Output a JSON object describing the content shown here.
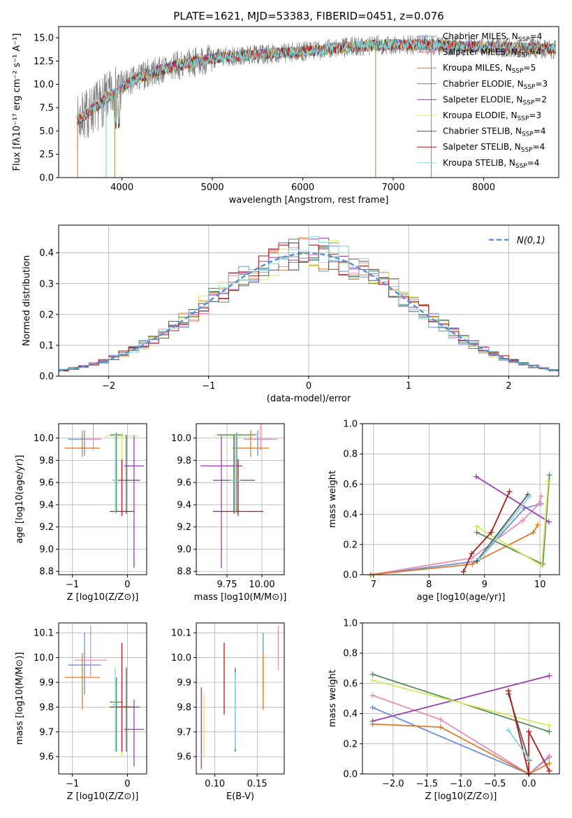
{
  "chart_data": [
    {
      "id": "spectrum",
      "type": "line",
      "title": "PLATE=1621, MJD=53383, FIBERID=0451, z=0.076",
      "xlabel": "wavelength [Angstrom, rest frame]",
      "ylabel": "Flux [fλ10⁻¹⁷ erg cm⁻² s⁻¹ A⁻¹]",
      "xlim": [
        3300,
        8830
      ],
      "ylim": [
        0,
        16.2
      ],
      "xticks": [
        4000,
        5000,
        6000,
        7000,
        8000
      ],
      "yticks": [
        0,
        2.5,
        5.0,
        7.5,
        10.0,
        12.5,
        15.0
      ],
      "grid": false,
      "legend_position": "right",
      "continuum": {
        "x": [
          3500,
          3700,
          3900,
          4100,
          4300,
          4600,
          5000,
          5500,
          6000,
          6500,
          6800,
          7100,
          7500,
          8000,
          8500,
          8800
        ],
        "y": [
          6.0,
          7.5,
          9.0,
          10.3,
          11.2,
          12.0,
          12.8,
          13.2,
          13.5,
          14.0,
          14.2,
          14.3,
          14.2,
          14.0,
          13.9,
          13.8
        ]
      },
      "series": [
        {
          "name": "Chabrier MILES, N_SSP=4",
          "color": "#6a8fd8"
        },
        {
          "name": "Salpeter MILES, N_SSP=4",
          "color": "#e58fb7"
        },
        {
          "name": "Kroupa MILES, N_SSP=5",
          "color": "#e07b27"
        },
        {
          "name": "Chabrier ELODIE, N_SSP=3",
          "color": "#5a8a5e"
        },
        {
          "name": "Salpeter ELODIE, N_SSP=2",
          "color": "#9a3fb5"
        },
        {
          "name": "Kroupa ELODIE, N_SSP=3",
          "color": "#d4ea5e"
        },
        {
          "name": "Chabrier STELIB, N_SSP=4",
          "color": "#555555"
        },
        {
          "name": "Salpeter STELIB, N_SSP=4",
          "color": "#b41a1a"
        },
        {
          "name": "Kroupa STELIB, N_SSP=4",
          "color": "#7fd7dc"
        }
      ],
      "data_color": "#808080"
    },
    {
      "id": "residuals",
      "type": "line",
      "xlabel": "(data-model)/error",
      "ylabel": "Normed distribution",
      "xlim": [
        -2.5,
        2.5
      ],
      "ylim": [
        0,
        0.49
      ],
      "xticks": [
        -2,
        -1,
        0,
        1,
        2
      ],
      "yticks": [
        0.0,
        0.1,
        0.2,
        0.3,
        0.4
      ],
      "grid": true,
      "legend_position": "top-right",
      "legend": "N(0,1)",
      "gaussian_color": "#5b8fd6",
      "bin_width": 0.1
    },
    {
      "id": "age-vs-Z",
      "type": "scatter",
      "xlabel": "Z [log10(Z/Z⊙)]",
      "ylabel": "age  [log10(age/yr)]",
      "xlim": [
        -1.25,
        0.35
      ],
      "ylim": [
        8.77,
        10.13
      ],
      "xticks": [
        -1,
        0
      ],
      "yticks": [
        8.8,
        9.0,
        9.2,
        9.4,
        9.6,
        9.8,
        10.0
      ],
      "grid": true,
      "points": [
        {
          "x": -0.78,
          "xerr": 0.3,
          "y": 9.99,
          "yerr": [
            0.15,
            0.08
          ],
          "color": "#6a8fd8"
        },
        {
          "x": -0.62,
          "xerr": 0.15,
          "y": 9.99,
          "yerr": [
            0.1,
            0.14
          ],
          "color": "#e58fb7"
        },
        {
          "x": -0.82,
          "xerr": 0.32,
          "y": 9.91,
          "yerr": [
            0.08,
            0.16
          ],
          "color": "#e07b27"
        },
        {
          "x": -0.2,
          "xerr": 0.12,
          "y": 10.03,
          "yerr": [
            0.7,
            0.02
          ],
          "color": "#5a8a5e"
        },
        {
          "x": 0.12,
          "xerr": 0.18,
          "y": 9.75,
          "yerr": [
            0.92,
            0.28
          ],
          "color": "#9a3fb5"
        },
        {
          "x": -0.1,
          "xerr": 0.3,
          "y": 10.02,
          "yerr": [
            0.7,
            0.03
          ],
          "color": "#d4ea5e"
        },
        {
          "x": -0.02,
          "xerr": 0.25,
          "y": 9.62,
          "yerr": [
            0.3,
            0.41
          ],
          "color": "#555555"
        },
        {
          "x": -0.1,
          "xerr": 0.22,
          "y": 9.34,
          "yerr": [
            0.04,
            0.47
          ],
          "color": "#b41a1a"
        },
        {
          "x": -0.22,
          "xerr": 0.05,
          "y": 9.62,
          "yerr": [
            0.3,
            0.42
          ],
          "color": "#7fd7dc"
        }
      ]
    },
    {
      "id": "age-vs-mass",
      "type": "scatter",
      "xlabel": "mass [log10(M/M⊙)]",
      "ylabel": "",
      "xlim": [
        9.53,
        10.16
      ],
      "ylim": [
        8.77,
        10.13
      ],
      "xticks": [
        9.75,
        10.0
      ],
      "xtick_labels": [
        "9.75",
        "10.00"
      ],
      "yticks": [
        8.8,
        9.0,
        9.2,
        9.4,
        9.6,
        9.8,
        10.0
      ],
      "grid": true,
      "points": [
        {
          "x": 9.97,
          "xerr": 0.1,
          "y": 9.99,
          "yerr": [
            0.15,
            0.08
          ],
          "color": "#6a8fd8"
        },
        {
          "x": 9.99,
          "xerr": 0.12,
          "y": 9.99,
          "yerr": [
            0.1,
            0.14
          ],
          "color": "#e58fb7"
        },
        {
          "x": 9.92,
          "xerr": 0.13,
          "y": 9.91,
          "yerr": [
            0.08,
            0.16
          ],
          "color": "#e07b27"
        },
        {
          "x": 9.82,
          "xerr": 0.14,
          "y": 10.03,
          "yerr": [
            0.7,
            0.02
          ],
          "color": "#5a8a5e"
        },
        {
          "x": 9.71,
          "xerr": 0.15,
          "y": 9.75,
          "yerr": [
            0.92,
            0.28
          ],
          "color": "#9a3fb5"
        },
        {
          "x": 9.8,
          "xerr": 0.14,
          "y": 10.02,
          "yerr": [
            0.7,
            0.03
          ],
          "color": "#d4ea5e"
        },
        {
          "x": 9.8,
          "xerr": 0.15,
          "y": 9.62,
          "yerr": [
            0.3,
            0.41
          ],
          "color": "#555555"
        },
        {
          "x": 9.83,
          "xerr": 0.18,
          "y": 9.34,
          "yerr": [
            0.04,
            0.47
          ],
          "color": "#b41a1a"
        },
        {
          "x": 9.81,
          "xerr": 0.04,
          "y": 9.62,
          "yerr": [
            0.3,
            0.42
          ],
          "color": "#7fd7dc"
        }
      ]
    },
    {
      "id": "weight-vs-age",
      "type": "line",
      "xlabel": "age  [log10(age/yr)]",
      "ylabel": "mass weight",
      "xlim": [
        6.8,
        10.35
      ],
      "ylim": [
        0,
        1.0
      ],
      "xticks": [
        7,
        8,
        9,
        10
      ],
      "yticks": [
        0.0,
        0.2,
        0.4,
        0.6,
        0.8,
        1.0
      ],
      "grid": true,
      "series": [
        {
          "color": "#6a8fd8",
          "x": [
            6.95,
            8.87,
            9.72,
            10.02
          ],
          "y": [
            0.0,
            0.09,
            0.44,
            0.47
          ]
        },
        {
          "color": "#e58fb7",
          "x": [
            6.95,
            8.77,
            9.69,
            9.98,
            10.02
          ],
          "y": [
            0.0,
            0.11,
            0.36,
            0.47,
            0.52
          ]
        },
        {
          "color": "#e07b27",
          "x": [
            6.95,
            8.78,
            8.86,
            9.88,
            9.96
          ],
          "y": [
            0.0,
            0.07,
            0.09,
            0.28,
            0.33
          ]
        },
        {
          "color": "#5a8a5e",
          "x": [
            8.86,
            10.05,
            10.17
          ],
          "y": [
            0.28,
            0.07,
            0.66
          ]
        },
        {
          "color": "#9a3fb5",
          "x": [
            8.85,
            10.16
          ],
          "y": [
            0.65,
            0.35
          ]
        },
        {
          "color": "#d4ea5e",
          "x": [
            8.86,
            10.03,
            10.15
          ],
          "y": [
            0.32,
            0.06,
            0.62
          ]
        },
        {
          "color": "#555555",
          "x": [
            8.86,
            9.78
          ],
          "y": [
            0.09,
            0.53
          ]
        },
        {
          "color": "#b41a1a",
          "x": [
            8.62,
            8.77,
            9.12,
            9.45
          ],
          "y": [
            0.02,
            0.14,
            0.28,
            0.55
          ]
        },
        {
          "color": "#7fd7dc",
          "x": [
            8.9,
            9.81
          ],
          "y": [
            0.1,
            0.52
          ]
        }
      ]
    },
    {
      "id": "mass-vs-Z",
      "type": "scatter",
      "xlabel": "Z [log10(Z/Z⊙)]",
      "ylabel": "mass [log10(M/M⊙)]",
      "xlim": [
        -1.25,
        0.35
      ],
      "ylim": [
        9.53,
        10.14
      ],
      "xticks": [
        -1,
        0
      ],
      "yticks": [
        9.6,
        9.7,
        9.8,
        9.9,
        10.0,
        10.1
      ],
      "grid": true,
      "points": [
        {
          "x": -0.78,
          "xerr": 0.3,
          "y": 9.97,
          "yerr": [
            0.12,
            0.13
          ],
          "color": "#6a8fd8"
        },
        {
          "x": -0.67,
          "xerr": 0.3,
          "y": 9.99,
          "yerr": [
            0.07,
            0.14
          ],
          "color": "#e58fb7"
        },
        {
          "x": -0.82,
          "xerr": 0.32,
          "y": 9.92,
          "yerr": [
            0.13,
            0.1
          ],
          "color": "#e07b27"
        },
        {
          "x": -0.2,
          "xerr": 0.12,
          "y": 9.82,
          "yerr": [
            0.2,
            0.1
          ],
          "color": "#5a8a5e"
        },
        {
          "x": 0.12,
          "xerr": 0.18,
          "y": 9.71,
          "yerr": [
            0.15,
            0.12
          ],
          "color": "#9a3fb5"
        },
        {
          "x": -0.1,
          "xerr": 0.3,
          "y": 9.8,
          "yerr": [
            0.2,
            0.1
          ],
          "color": "#d4ea5e"
        },
        {
          "x": -0.02,
          "xerr": 0.25,
          "y": 9.8,
          "yerr": [
            0.18,
            0.16
          ],
          "color": "#555555"
        },
        {
          "x": -0.1,
          "xerr": 0.22,
          "y": 9.8,
          "yerr": [
            0.18,
            0.26
          ],
          "color": "#b41a1a"
        },
        {
          "x": -0.22,
          "xerr": 0.05,
          "y": 9.81,
          "yerr": [
            0.19,
            0.15
          ],
          "color": "#7fd7dc"
        }
      ]
    },
    {
      "id": "mass-vs-EBV",
      "type": "scatter",
      "xlabel": "E(B-V)",
      "ylabel": "",
      "xlim": [
        0.078,
        0.182
      ],
      "ylim": [
        9.53,
        10.14
      ],
      "xticks": [
        0.1,
        0.15
      ],
      "xtick_labels": [
        "0.10",
        "0.15"
      ],
      "yticks": [
        9.6,
        9.7,
        9.8,
        9.9,
        10.0,
        10.1
      ],
      "grid": true,
      "points": [
        {
          "x": 0.157,
          "y": 9.97,
          "yerr": [
            0.12,
            0.13
          ],
          "color": "#6a8fd8"
        },
        {
          "x": 0.175,
          "y": 10.04,
          "yerr": [
            0.09,
            0.09
          ],
          "color": "#e58fb7"
        },
        {
          "x": 0.157,
          "y": 9.92,
          "yerr": [
            0.13,
            0.1
          ],
          "color": "#e07b27"
        },
        {
          "x": 0.124,
          "y": 9.8,
          "yerr": [
            0.18,
            0.16
          ],
          "color": "#5a8a5e"
        },
        {
          "x": 0.084,
          "y": 9.71,
          "yerr": [
            0.16,
            0.17
          ],
          "color": "#9a3fb5"
        },
        {
          "x": 0.087,
          "y": 9.72,
          "yerr": [
            0.12,
            0.13
          ],
          "color": "#d4ea5e"
        },
        {
          "x": 0.124,
          "y": 9.79,
          "yerr": [
            0.17,
            0.16
          ],
          "color": "#555555"
        },
        {
          "x": 0.111,
          "y": 9.92,
          "yerr": [
            0.15,
            0.14
          ],
          "color": "#b41a1a"
        },
        {
          "x": 0.124,
          "y": 9.79,
          "yerr": [
            0.16,
            0.15
          ],
          "color": "#7fd7dc"
        }
      ]
    },
    {
      "id": "weight-vs-Z",
      "type": "line",
      "xlabel": "Z [log10(Z/Z⊙)]",
      "ylabel": "mass weight",
      "xlim": [
        -2.45,
        0.45
      ],
      "ylim": [
        0,
        1.0
      ],
      "xticks": [
        -2.0,
        -1.5,
        -1.0,
        -0.5,
        0.0
      ],
      "yticks": [
        0.0,
        0.2,
        0.4,
        0.6,
        0.8,
        1.0
      ],
      "grid": true,
      "series": [
        {
          "color": "#6a8fd8",
          "x": [
            -2.3,
            0.0,
            0.3
          ],
          "y": [
            0.44,
            0.0,
            0.11
          ]
        },
        {
          "color": "#e58fb7",
          "x": [
            -2.3,
            -1.3,
            0.0,
            0.3
          ],
          "y": [
            0.52,
            0.36,
            0.0,
            0.12
          ]
        },
        {
          "color": "#e07b27",
          "x": [
            -2.3,
            -1.3,
            0.0,
            0.3
          ],
          "y": [
            0.33,
            0.31,
            0.0,
            0.07
          ]
        },
        {
          "color": "#5a8a5e",
          "x": [
            -2.3,
            0.3
          ],
          "y": [
            0.66,
            0.28
          ]
        },
        {
          "color": "#9a3fb5",
          "x": [
            -2.3,
            0.3
          ],
          "y": [
            0.35,
            0.65
          ]
        },
        {
          "color": "#d4ea5e",
          "x": [
            -2.3,
            0.3
          ],
          "y": [
            0.62,
            0.32
          ]
        },
        {
          "color": "#555555",
          "x": [
            -0.3,
            0.0
          ],
          "y": [
            0.53,
            0.09
          ]
        },
        {
          "color": "#b41a1a",
          "x": [
            -0.3,
            0.0,
            0.0,
            0.3
          ],
          "y": [
            0.55,
            0.0,
            0.28,
            0.02
          ]
        },
        {
          "color": "#7fd7dc",
          "x": [
            -0.3,
            0.0
          ],
          "y": [
            0.29,
            0.1
          ]
        }
      ]
    }
  ]
}
